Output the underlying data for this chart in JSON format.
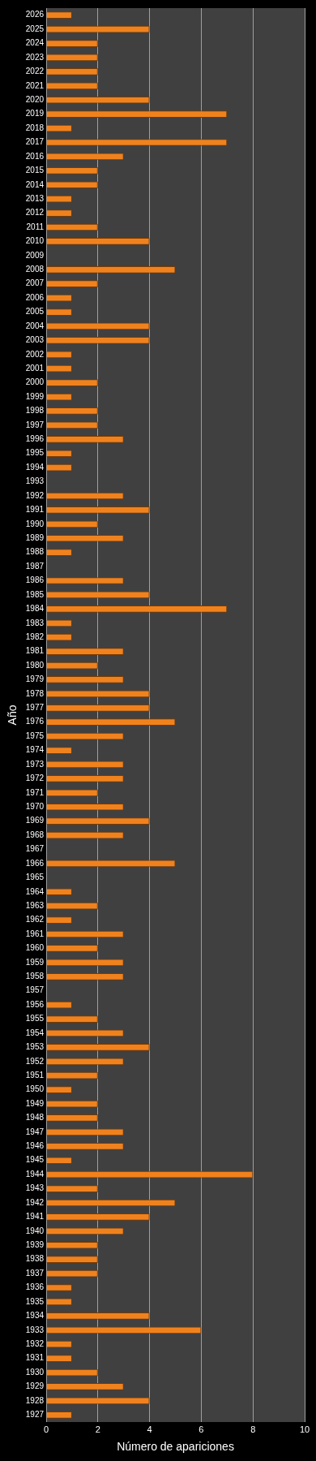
{
  "chart_data": {
    "type": "bar",
    "orientation": "horizontal",
    "xlabel": "Número de apariciones",
    "ylabel": "Año",
    "categories": [
      "2026",
      "2025",
      "2024",
      "2023",
      "2022",
      "2021",
      "2020",
      "2019",
      "2018",
      "2017",
      "2016",
      "2015",
      "2014",
      "2013",
      "2012",
      "2011",
      "2010",
      "2009",
      "2008",
      "2007",
      "2006",
      "2005",
      "2004",
      "2003",
      "2002",
      "2001",
      "2000",
      "1999",
      "1998",
      "1997",
      "1996",
      "1995",
      "1994",
      "1993",
      "1992",
      "1991",
      "1990",
      "1989",
      "1988",
      "1987",
      "1986",
      "1985",
      "1984",
      "1983",
      "1982",
      "1981",
      "1980",
      "1979",
      "1978",
      "1977",
      "1976",
      "1975",
      "1974",
      "1973",
      "1972",
      "1971",
      "1970",
      "1969",
      "1968",
      "1967",
      "1966",
      "1965",
      "1964",
      "1963",
      "1962",
      "1961",
      "1960",
      "1959",
      "1958",
      "1957",
      "1956",
      "1955",
      "1954",
      "1953",
      "1952",
      "1951",
      "1950",
      "1949",
      "1948",
      "1947",
      "1946",
      "1945",
      "1944",
      "1943",
      "1942",
      "1941",
      "1940",
      "1939",
      "1938",
      "1937",
      "1936",
      "1935",
      "1934",
      "1933",
      "1932",
      "1931",
      "1930",
      "1929",
      "1928",
      "1927"
    ],
    "values": [
      1,
      4,
      2,
      2,
      2,
      2,
      4,
      7,
      1,
      7,
      3,
      2,
      2,
      1,
      1,
      2,
      4,
      0,
      5,
      2,
      1,
      1,
      4,
      4,
      1,
      1,
      2,
      1,
      2,
      2,
      3,
      1,
      1,
      0,
      3,
      4,
      2,
      3,
      1,
      0,
      3,
      4,
      7,
      1,
      1,
      3,
      2,
      3,
      4,
      4,
      5,
      3,
      1,
      3,
      3,
      2,
      3,
      4,
      3,
      0,
      5,
      0,
      1,
      2,
      1,
      3,
      2,
      3,
      3,
      0,
      1,
      2,
      3,
      4,
      3,
      2,
      1,
      2,
      2,
      3,
      3,
      1,
      8,
      2,
      5,
      4,
      3,
      2,
      2,
      2,
      1,
      1,
      4,
      6,
      1,
      1,
      2,
      3,
      4,
      1
    ],
    "color": "#f0821e",
    "xlim": [
      0,
      10
    ],
    "xticks": [
      0,
      2,
      4,
      6,
      8,
      10
    ],
    "grid": "x",
    "legend": false
  }
}
